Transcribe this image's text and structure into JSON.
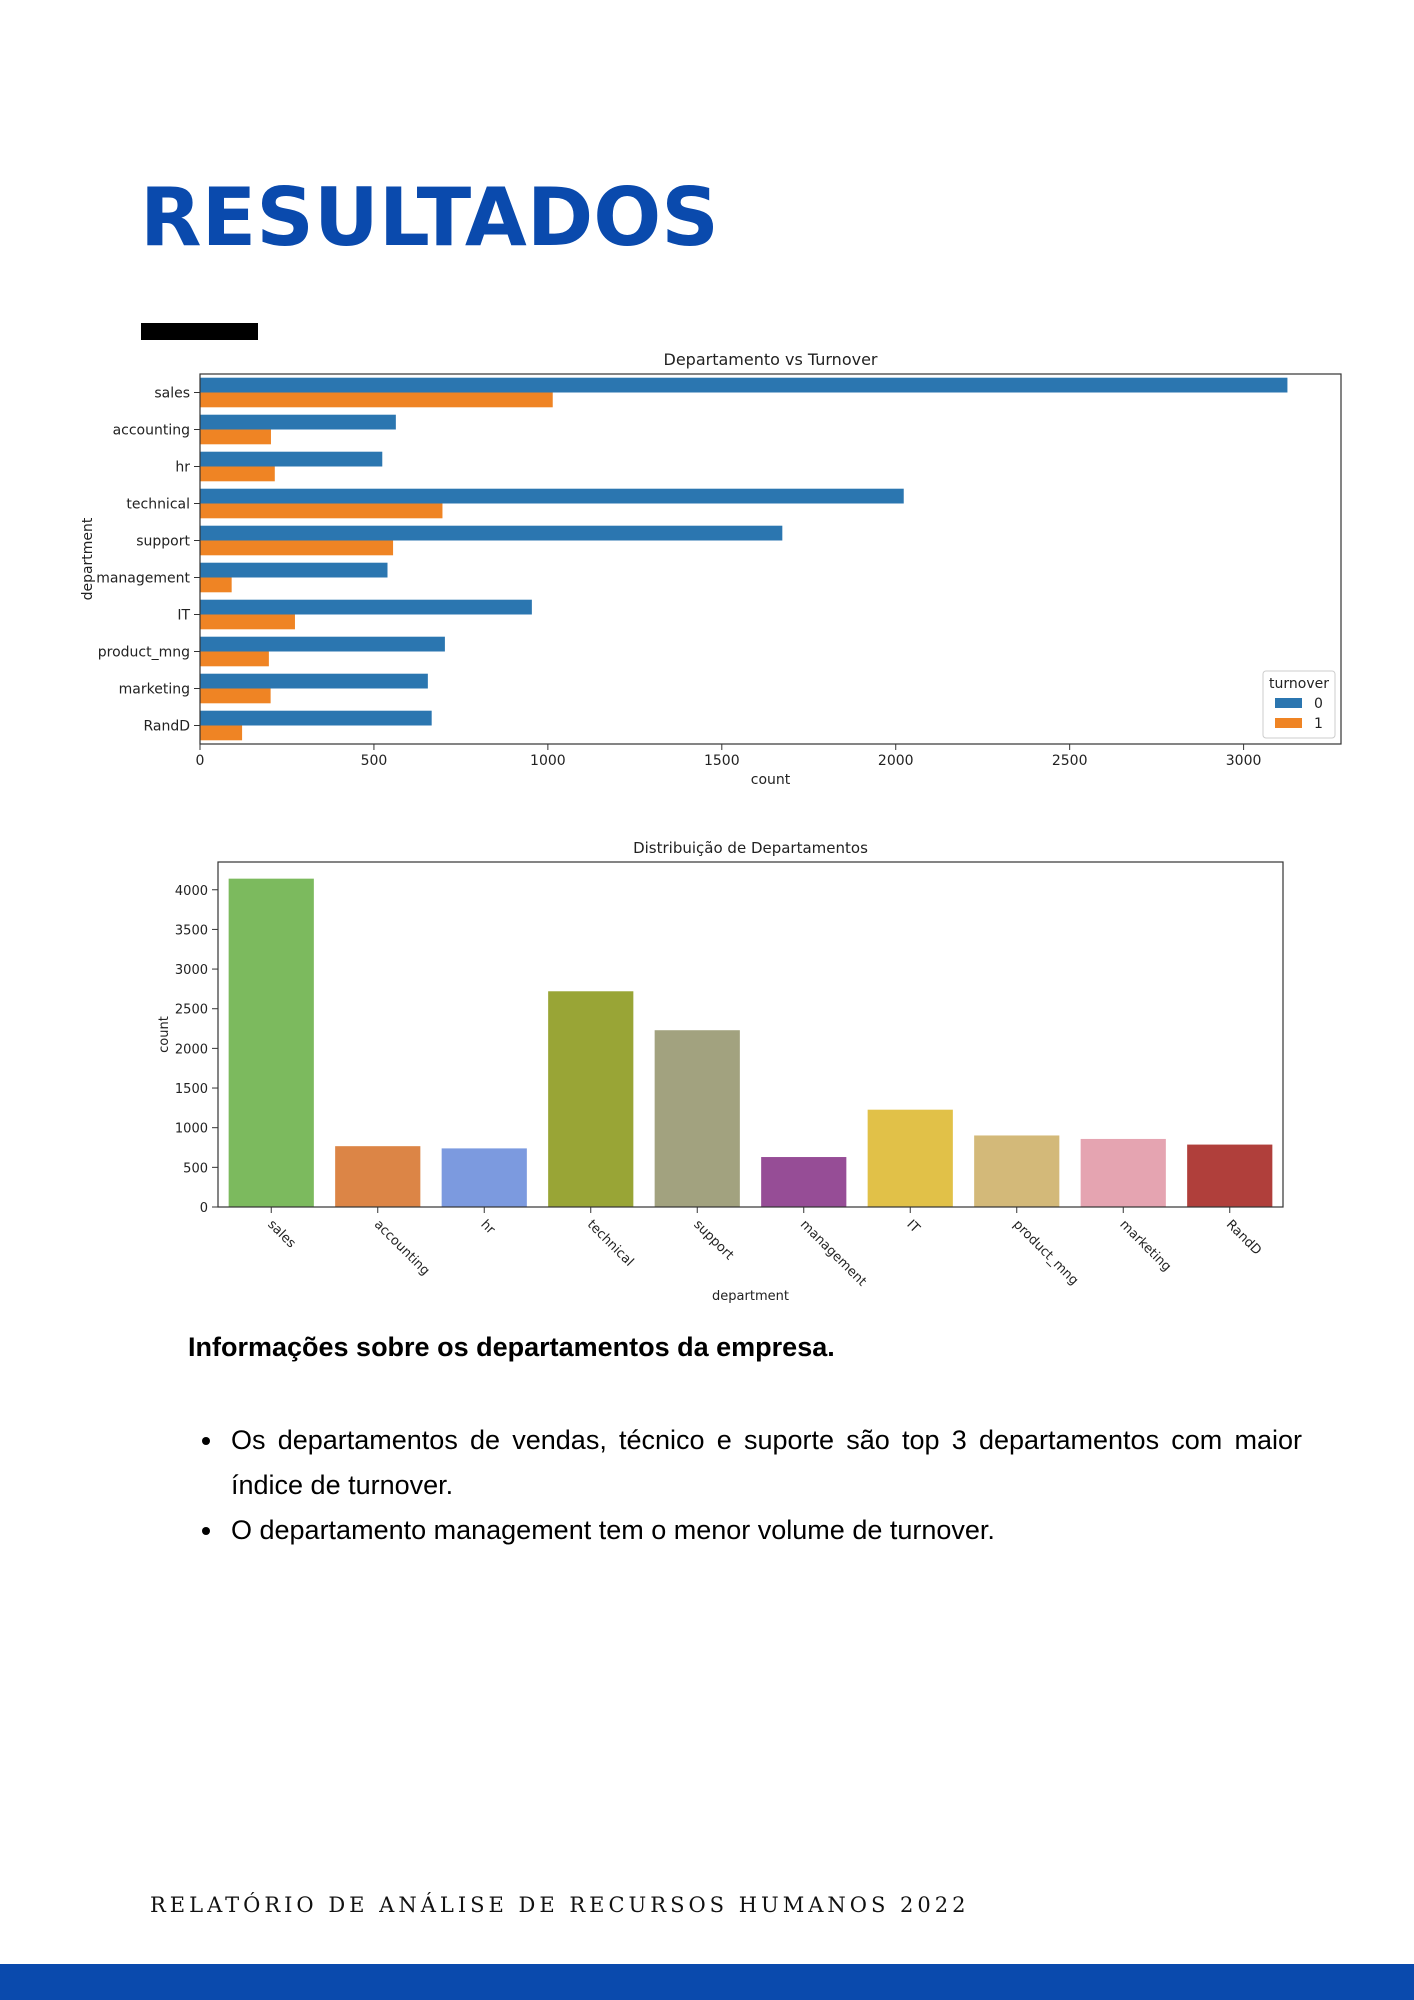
{
  "page": {
    "title": "RESULTADOS",
    "section_heading": "Informações sobre os departamentos da empresa.",
    "bullets": [
      "Os departamentos de vendas, técnico e suporte são top 3 departamentos com maior índice de turnover.",
      "O departamento management tem o menor volume de turnover."
    ],
    "footer": "RELATÓRIO DE ANÁLISE DE RECURSOS HUMANOS 2022",
    "colors": {
      "brand_blue": "#0a4aad"
    }
  },
  "chart_data": [
    {
      "type": "bar",
      "orientation": "horizontal",
      "title": "Departamento vs Turnover",
      "xlabel": "count",
      "ylabel": "department",
      "categories": [
        "sales",
        "accounting",
        "hr",
        "technical",
        "support",
        "management",
        "IT",
        "product_mng",
        "marketing",
        "RandD"
      ],
      "series": [
        {
          "name": "0",
          "color": "#2b76b0",
          "values": [
            3126,
            563,
            524,
            2023,
            1674,
            539,
            954,
            704,
            655,
            666
          ]
        },
        {
          "name": "1",
          "color": "#ef8424",
          "values": [
            1014,
            204,
            215,
            697,
            555,
            91,
            273,
            198,
            203,
            121
          ]
        }
      ],
      "xlim": [
        0,
        3280
      ],
      "xticks": [
        0,
        500,
        1000,
        1500,
        2000,
        2500,
        3000
      ],
      "legend": {
        "title": "turnover",
        "position": "lower-right"
      },
      "grid": false
    },
    {
      "type": "bar",
      "title": "Distribuição de Departamentos",
      "xlabel": "department",
      "ylabel": "count",
      "categories": [
        "sales",
        "accounting",
        "hr",
        "technical",
        "support",
        "management",
        "IT",
        "product_mng",
        "marketing",
        "RandD"
      ],
      "values": [
        4140,
        767,
        739,
        2720,
        2229,
        630,
        1227,
        902,
        858,
        787
      ],
      "colors": [
        "#7cba5e",
        "#dc8546",
        "#7c9adf",
        "#99a536",
        "#a2a27f",
        "#964d96",
        "#e1c148",
        "#d3b979",
        "#e5a4b1",
        "#b03f3b"
      ],
      "ylim": [
        0,
        4350
      ],
      "yticks": [
        0,
        500,
        1000,
        1500,
        2000,
        2500,
        3000,
        3500,
        4000
      ],
      "grid": false
    }
  ]
}
